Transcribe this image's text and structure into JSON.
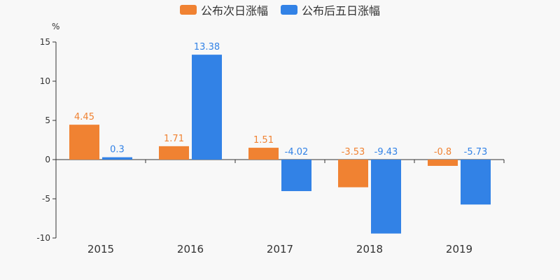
{
  "unit_label": "%",
  "chart_data": {
    "type": "bar",
    "categories": [
      "2015",
      "2016",
      "2017",
      "2018",
      "2019"
    ],
    "series": [
      {
        "name": "公布次日涨幅",
        "color": "#f08232",
        "values": [
          4.45,
          1.71,
          1.51,
          -3.53,
          -0.8
        ],
        "labels": [
          "4.45",
          "1.71",
          "1.51",
          "-3.53",
          "-0.8"
        ]
      },
      {
        "name": "公布后五日涨幅",
        "color": "#3282e6",
        "values": [
          0.3,
          13.38,
          -4.02,
          -9.43,
          -5.73
        ],
        "labels": [
          "0.3",
          "13.38",
          "-4.02",
          "-9.43",
          "-5.73"
        ]
      }
    ],
    "ylim": [
      -10,
      15
    ],
    "yticks": [
      15,
      10,
      5,
      0,
      -5,
      -10
    ],
    "ytick_labels": [
      "15",
      "10",
      "5",
      "0",
      "-5",
      "-10"
    ],
    "legend_position": "top-center",
    "grid": false
  }
}
